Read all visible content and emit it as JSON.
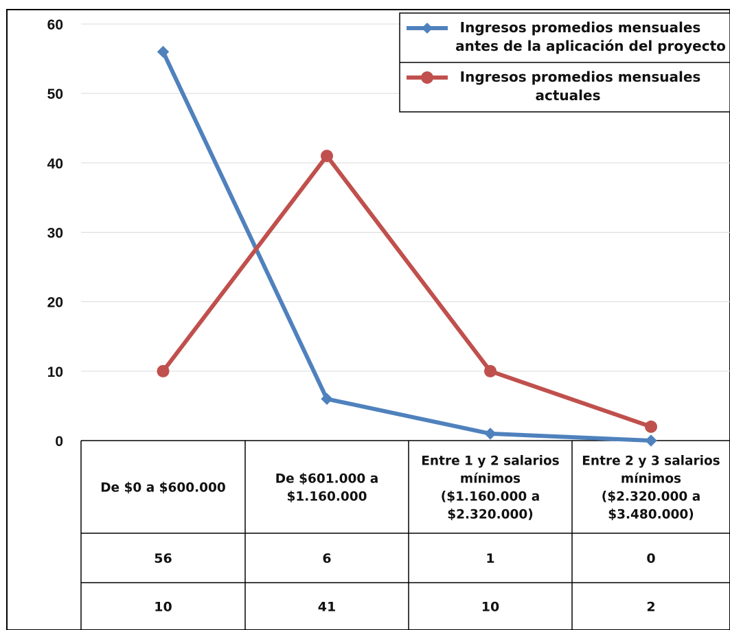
{
  "chart_data": {
    "type": "line",
    "categories": [
      [
        "De $0 a $600.000"
      ],
      [
        "De $601.000 a",
        "$1.160.000"
      ],
      [
        "Entre 1 y 2 salarios",
        "mínimos",
        "($1.160.000 a",
        "$2.320.000)"
      ],
      [
        "Entre 2 y 3 salarios",
        "mínimos",
        "($2.320.000 a",
        "$3.480.000)"
      ]
    ],
    "series": [
      {
        "name": [
          "Ingresos promedios mensuales",
          "antes de la aplicación del proyecto"
        ],
        "values": [
          56,
          6,
          1,
          0
        ],
        "color": "#4f81bd",
        "marker": "diamond"
      },
      {
        "name": [
          "Ingresos promedios mensuales",
          "actuales"
        ],
        "values": [
          10,
          41,
          10,
          2
        ],
        "color": "#c0504d",
        "marker": "circle"
      }
    ],
    "ylim": [
      0,
      60
    ],
    "yticks": [
      0,
      10,
      20,
      30,
      40,
      50,
      60
    ],
    "grid": true,
    "legend_position": "top-right",
    "data_table": true
  }
}
